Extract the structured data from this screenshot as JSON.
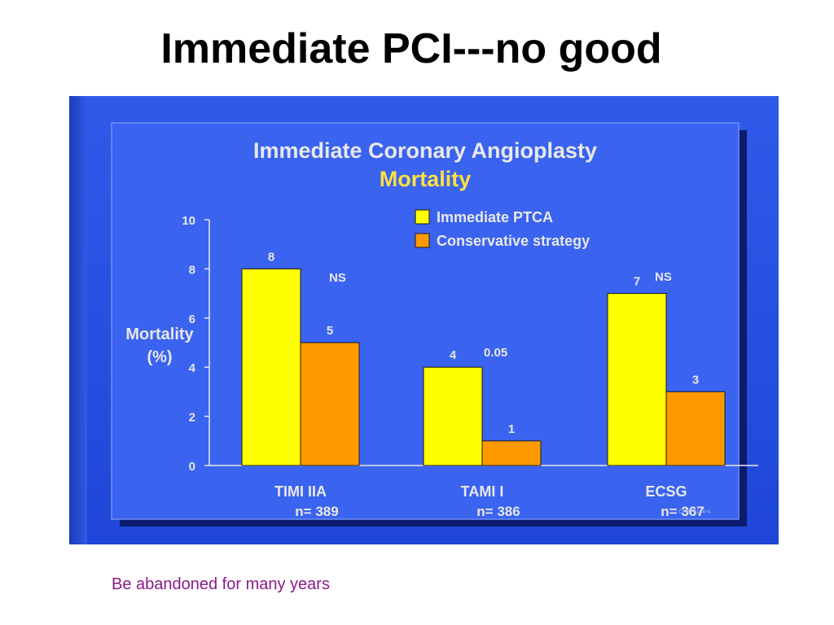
{
  "slide": {
    "title": "Immediate PCI---no good",
    "caption": "Be abandoned for many years"
  },
  "colors": {
    "background_blue": "#2a52e6",
    "panel_blue": "#3a63f0",
    "ptca_yellow": "#ffff00",
    "conservative_orange": "#ff9900",
    "subtitle_yellow": "#ffe040",
    "caption_purple": "#8b1a8b"
  },
  "chart_data": {
    "type": "bar",
    "title": "Immediate Coronary Angioplasty",
    "subtitle": "Mortality",
    "ylabel": [
      "Mortality",
      "(%)"
    ],
    "ylim": [
      0,
      10
    ],
    "yticks": [
      "0",
      "2",
      "4",
      "6",
      "8",
      "10"
    ],
    "grid": false,
    "legend_position": "top-right",
    "categories": [
      "TIMI IIA",
      "TAMI I",
      "ECSG"
    ],
    "category_n": [
      "n= 389",
      "n= 386",
      "n= 367"
    ],
    "series": [
      {
        "name": "Immediate PTCA",
        "color": "#ffff00",
        "values": [
          8,
          4,
          7
        ],
        "labels": [
          "8",
          "4",
          "7"
        ]
      },
      {
        "name": "Conservative strategy",
        "color": "#ff9900",
        "values": [
          5,
          1,
          3
        ],
        "labels": [
          "5",
          "1",
          "3"
        ]
      }
    ],
    "significance": [
      "NS",
      "0.05",
      "NS"
    ],
    "footnote_code": "CP877164-6"
  }
}
